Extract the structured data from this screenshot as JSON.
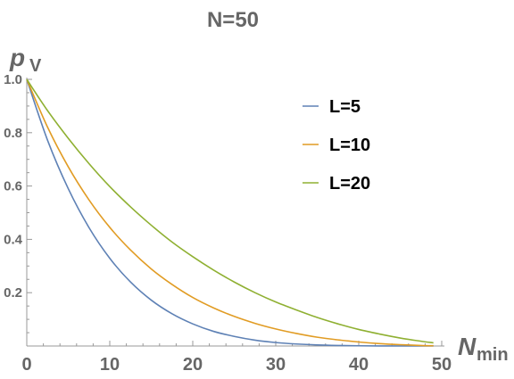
{
  "chart_data": {
    "type": "line",
    "title": "N=50",
    "ylabel": {
      "main": "p",
      "sub": "V"
    },
    "xlabel": {
      "main": "N",
      "sub": "min"
    },
    "xlim": [
      0,
      50
    ],
    "ylim": [
      0,
      1
    ],
    "x_ticks": [
      0,
      10,
      20,
      30,
      40,
      50
    ],
    "y_ticks": [
      0.2,
      0.4,
      0.6,
      0.8,
      1.0
    ],
    "y_tick_labels": [
      "0.2",
      "0.4",
      "0.6",
      "0.8",
      "1.0"
    ],
    "grid": false,
    "legend_position": "top-right",
    "x": [
      0,
      2.5,
      5,
      7.5,
      10,
      12.5,
      15,
      17.5,
      20,
      22.5,
      25,
      27.5,
      30,
      32.5,
      35,
      37.5,
      40,
      42.5,
      45,
      47.5,
      49
    ],
    "series": [
      {
        "name": "L=5",
        "color": "#5e81b5",
        "values": [
          1.0,
          0.772,
          0.59,
          0.444,
          0.329,
          0.24,
          0.172,
          0.121,
          0.083,
          0.055,
          0.036,
          0.022,
          0.013,
          0.0075,
          0.004,
          0.002,
          0.0008,
          0.0003,
          0.0001,
          0.0,
          0.0
        ]
      },
      {
        "name": "L=10",
        "color": "#e19c24",
        "values": [
          1.0,
          0.821,
          0.672,
          0.548,
          0.445,
          0.36,
          0.289,
          0.231,
          0.182,
          0.143,
          0.111,
          0.085,
          0.064,
          0.047,
          0.033,
          0.023,
          0.015,
          0.009,
          0.005,
          0.002,
          0.001
        ]
      },
      {
        "name": "L=20",
        "color": "#8fb032",
        "values": [
          1.0,
          0.883,
          0.779,
          0.684,
          0.598,
          0.522,
          0.453,
          0.39,
          0.335,
          0.285,
          0.24,
          0.2,
          0.165,
          0.135,
          0.107,
          0.083,
          0.062,
          0.045,
          0.03,
          0.018,
          0.012
        ]
      }
    ]
  }
}
